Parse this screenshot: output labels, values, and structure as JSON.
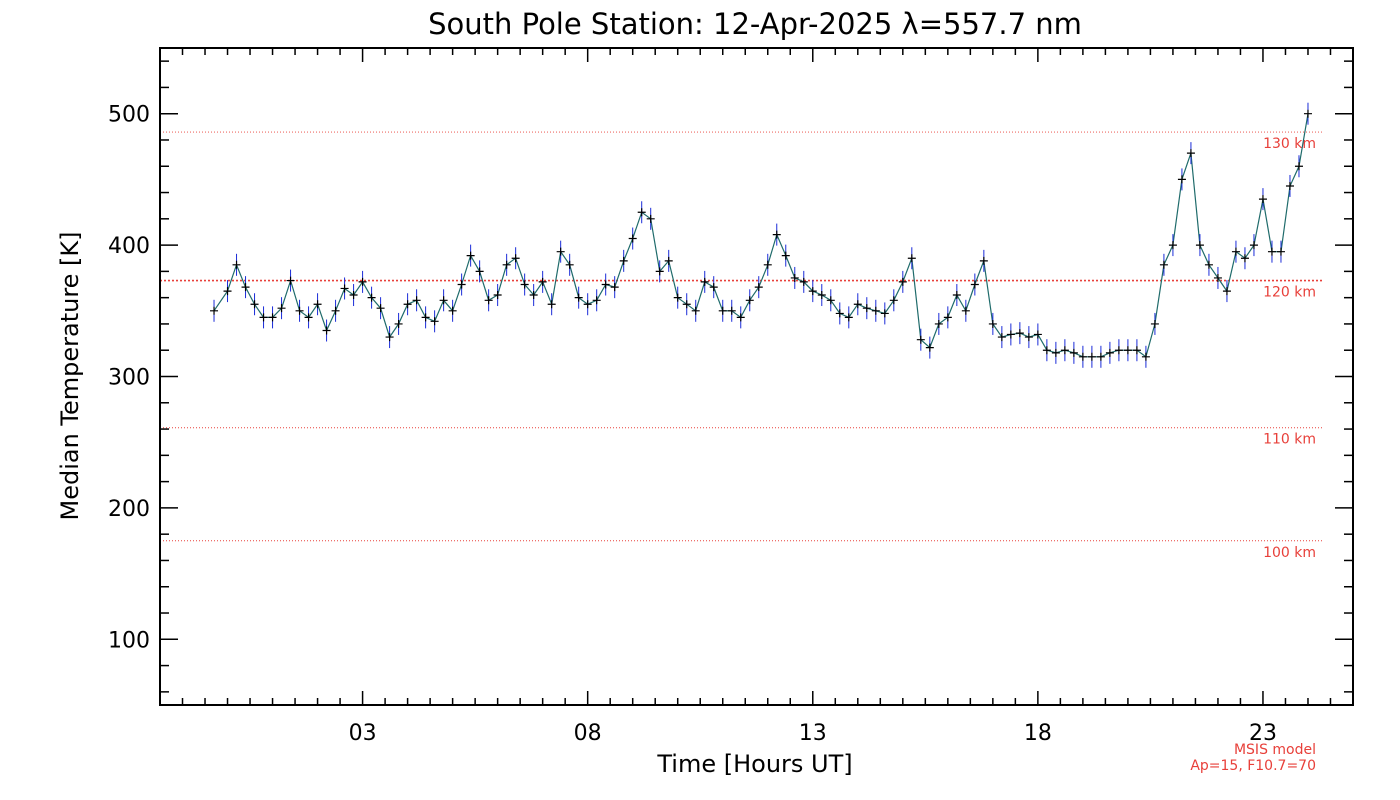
{
  "chart_data": {
    "type": "line",
    "title": "South Pole Station: 12-Apr-2025 λ=557.7 nm",
    "xlabel": "Time [Hours UT]",
    "ylabel": "Median Temperature [K]",
    "xlim": [
      -1.5,
      25
    ],
    "ylim": [
      50,
      550
    ],
    "x_ticks": [
      {
        "value": 3,
        "label": "03"
      },
      {
        "value": 8,
        "label": "08"
      },
      {
        "value": 13,
        "label": "13"
      },
      {
        "value": 18,
        "label": "18"
      },
      {
        "value": 23,
        "label": "23"
      }
    ],
    "y_ticks": [
      {
        "value": 100,
        "label": "100"
      },
      {
        "value": 200,
        "label": "200"
      },
      {
        "value": 300,
        "label": "300"
      },
      {
        "value": 400,
        "label": "400"
      },
      {
        "value": 500,
        "label": "500"
      }
    ],
    "reference_lines": [
      {
        "label": "130 km",
        "value": 486
      },
      {
        "label": "120 km",
        "value": 373
      },
      {
        "label": "110 km",
        "value": 261
      },
      {
        "label": "100 km",
        "value": 175
      }
    ],
    "model_note": [
      "MSIS model",
      "Ap=15, F10.7=70"
    ],
    "series": [
      {
        "x": [
          -0.3,
          0.0,
          0.2,
          0.4,
          0.6,
          0.8,
          1.0,
          1.2,
          1.4,
          1.6,
          1.8,
          2.0,
          2.2,
          2.4,
          2.6,
          2.8,
          3.0,
          3.2,
          3.4,
          3.6,
          3.8,
          4.0,
          4.2,
          4.4,
          4.6,
          4.8,
          5.0,
          5.2,
          5.4,
          5.6,
          5.8,
          6.0,
          6.2,
          6.4,
          6.6,
          6.8,
          7.0,
          7.2,
          7.4,
          7.6,
          7.8,
          8.0,
          8.2,
          8.4,
          8.6,
          8.8,
          9.0,
          9.2,
          9.4,
          9.6,
          9.8,
          10.0,
          10.2,
          10.4,
          10.6,
          10.8,
          11.0,
          11.2,
          11.4,
          11.6,
          11.8,
          12.0,
          12.2,
          12.4,
          12.6,
          12.8,
          13.0,
          13.2,
          13.4,
          13.6,
          13.8,
          14.0,
          14.2,
          14.4,
          14.6,
          14.8,
          15.0,
          15.2,
          15.4,
          15.6,
          15.8,
          16.0,
          16.2,
          16.4,
          16.6,
          16.8,
          17.0,
          17.2,
          17.4,
          17.6,
          17.8,
          18.0,
          18.2,
          18.4,
          18.6,
          18.8,
          19.0,
          19.2,
          19.4,
          19.6,
          19.8,
          20.0,
          20.2,
          20.4,
          20.6,
          20.8,
          21.0,
          21.2,
          21.4,
          21.6,
          21.8,
          22.0,
          22.2,
          22.4,
          22.6,
          22.8,
          23.0,
          23.2,
          23.4,
          23.6,
          23.8,
          24.0
        ],
        "y": [
          350,
          365,
          385,
          368,
          355,
          345,
          345,
          352,
          373,
          350,
          345,
          355,
          335,
          350,
          367,
          362,
          372,
          360,
          352,
          330,
          340,
          355,
          358,
          345,
          342,
          358,
          350,
          370,
          392,
          380,
          358,
          362,
          385,
          390,
          370,
          362,
          372,
          355,
          395,
          385,
          360,
          355,
          358,
          370,
          368,
          388,
          405,
          425,
          420,
          380,
          388,
          360,
          355,
          350,
          372,
          368,
          350,
          350,
          345,
          358,
          368,
          385,
          408,
          392,
          375,
          372,
          365,
          362,
          358,
          348,
          345,
          355,
          352,
          350,
          348,
          358,
          372,
          390,
          328,
          322,
          340,
          345,
          362,
          350,
          370,
          388,
          340,
          330,
          332,
          333,
          330,
          332,
          320,
          318,
          320,
          318,
          315,
          315,
          315,
          318,
          320,
          320,
          320,
          315,
          340,
          385,
          400,
          450,
          470,
          400,
          385,
          375,
          365,
          395,
          390,
          400,
          435,
          395,
          395,
          445,
          460,
          500
        ]
      }
    ]
  }
}
